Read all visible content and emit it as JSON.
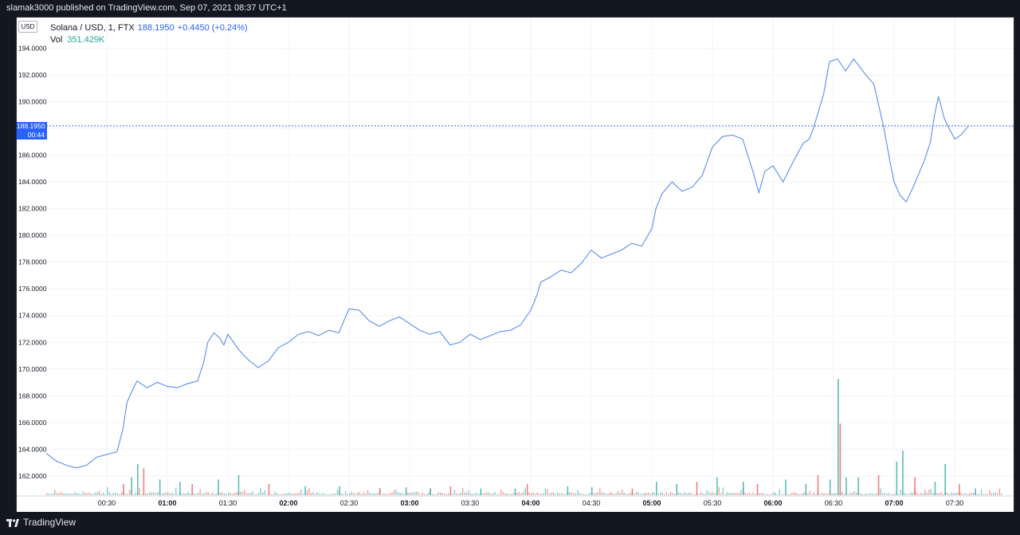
{
  "header": {
    "published_text": "slamak3000 published on TradingView.com, Sep 07, 2021 08:37 UTC+1"
  },
  "footer": {
    "brand": "TradingView"
  },
  "legend": {
    "symbol": "Solana / USD, 1, FTX",
    "price": "188.1950",
    "change": "+0.4450 (+0.24%)",
    "vol_label": "Vol",
    "vol_value": "351.429K"
  },
  "currency_badge": "USD",
  "price_tag": {
    "price": "188.1950",
    "countdown": "00:44"
  },
  "colors": {
    "line": "#5b8def",
    "vol_up": "#26a69a",
    "vol_down": "#ef5350",
    "grid": "#f0f3fa",
    "price_line": "#2962ff"
  },
  "chart_data": {
    "type": "line",
    "title": "Solana / USD, 1, FTX",
    "xlabel": "",
    "ylabel": "",
    "ylim": [
      160.5,
      196.3
    ],
    "y_ticks": [
      "162.0000",
      "164.0000",
      "166.0000",
      "168.0000",
      "170.0000",
      "172.0000",
      "174.0000",
      "176.0000",
      "178.0000",
      "180.0000",
      "182.0000",
      "184.0000",
      "186.0000",
      "188.0000",
      "190.0000",
      "192.0000",
      "194.0000"
    ],
    "x_ticks": [
      "00:30",
      "01:00",
      "01:30",
      "02:00",
      "02:30",
      "03:00",
      "03:30",
      "04:00",
      "04:30",
      "05:00",
      "05:30",
      "06:00",
      "06:30",
      "07:00",
      "07:30"
    ],
    "x_tick_minutes": [
      30,
      60,
      90,
      120,
      150,
      180,
      210,
      240,
      270,
      300,
      330,
      360,
      390,
      420,
      450
    ],
    "x_range_minutes": [
      0,
      473
    ],
    "current_price": 188.195,
    "series": [
      {
        "name": "Price",
        "points": [
          [
            0,
            163.7
          ],
          [
            5,
            163.1
          ],
          [
            10,
            162.8
          ],
          [
            15,
            162.6
          ],
          [
            20,
            162.8
          ],
          [
            25,
            163.4
          ],
          [
            30,
            163.6
          ],
          [
            35,
            163.8
          ],
          [
            38,
            165.5
          ],
          [
            40,
            167.5
          ],
          [
            43,
            168.5
          ],
          [
            45,
            169.1
          ],
          [
            50,
            168.6
          ],
          [
            55,
            169.0
          ],
          [
            60,
            168.7
          ],
          [
            65,
            168.6
          ],
          [
            70,
            168.9
          ],
          [
            75,
            169.1
          ],
          [
            78,
            170.5
          ],
          [
            80,
            172.0
          ],
          [
            83,
            172.7
          ],
          [
            86,
            172.3
          ],
          [
            88,
            171.8
          ],
          [
            90,
            172.6
          ],
          [
            95,
            171.5
          ],
          [
            100,
            170.7
          ],
          [
            105,
            170.1
          ],
          [
            110,
            170.6
          ],
          [
            115,
            171.6
          ],
          [
            120,
            172.0
          ],
          [
            125,
            172.6
          ],
          [
            130,
            172.8
          ],
          [
            135,
            172.5
          ],
          [
            140,
            172.9
          ],
          [
            145,
            172.7
          ],
          [
            148,
            173.8
          ],
          [
            150,
            174.5
          ],
          [
            155,
            174.4
          ],
          [
            160,
            173.6
          ],
          [
            165,
            173.2
          ],
          [
            170,
            173.6
          ],
          [
            175,
            173.9
          ],
          [
            180,
            173.4
          ],
          [
            185,
            172.9
          ],
          [
            190,
            172.6
          ],
          [
            195,
            172.8
          ],
          [
            200,
            171.8
          ],
          [
            205,
            172.0
          ],
          [
            210,
            172.6
          ],
          [
            215,
            172.2
          ],
          [
            220,
            172.5
          ],
          [
            225,
            172.8
          ],
          [
            230,
            172.9
          ],
          [
            235,
            173.3
          ],
          [
            240,
            174.4
          ],
          [
            243,
            175.5
          ],
          [
            245,
            176.5
          ],
          [
            250,
            176.9
          ],
          [
            255,
            177.4
          ],
          [
            260,
            177.2
          ],
          [
            265,
            177.9
          ],
          [
            270,
            178.9
          ],
          [
            275,
            178.3
          ],
          [
            280,
            178.6
          ],
          [
            285,
            178.9
          ],
          [
            290,
            179.4
          ],
          [
            295,
            179.2
          ],
          [
            300,
            180.5
          ],
          [
            302,
            182.0
          ],
          [
            305,
            183.1
          ],
          [
            310,
            184.0
          ],
          [
            315,
            183.3
          ],
          [
            320,
            183.6
          ],
          [
            325,
            184.5
          ],
          [
            330,
            186.6
          ],
          [
            335,
            187.4
          ],
          [
            340,
            187.5
          ],
          [
            345,
            187.2
          ],
          [
            350,
            184.8
          ],
          [
            353,
            183.2
          ],
          [
            356,
            184.8
          ],
          [
            360,
            185.2
          ],
          [
            365,
            184.0
          ],
          [
            370,
            185.5
          ],
          [
            375,
            186.9
          ],
          [
            378,
            187.2
          ],
          [
            380,
            188.0
          ],
          [
            385,
            190.5
          ],
          [
            388,
            193.0
          ],
          [
            392,
            193.2
          ],
          [
            396,
            192.3
          ],
          [
            400,
            193.2
          ],
          [
            405,
            192.2
          ],
          [
            410,
            191.3
          ],
          [
            415,
            188.0
          ],
          [
            418,
            185.5
          ],
          [
            420,
            184.0
          ],
          [
            423,
            183.0
          ],
          [
            426,
            182.5
          ],
          [
            430,
            183.8
          ],
          [
            435,
            185.6
          ],
          [
            438,
            187.0
          ],
          [
            440,
            189.0
          ],
          [
            442,
            190.4
          ],
          [
            445,
            188.7
          ],
          [
            450,
            187.2
          ],
          [
            453,
            187.5
          ],
          [
            457,
            188.2
          ]
        ]
      }
    ],
    "volume": {
      "name": "Vol",
      "current": "351.429K",
      "bars": [
        [
          20,
          0.0
        ],
        [
          38,
          5.0
        ],
        [
          42,
          8.0
        ],
        [
          45,
          14.0
        ],
        [
          48,
          12.0
        ],
        [
          56,
          7.0
        ],
        [
          66,
          6.0
        ],
        [
          72,
          5.0
        ],
        [
          85,
          7.0
        ],
        [
          95,
          9.0
        ],
        [
          110,
          5.0
        ],
        [
          128,
          4.0
        ],
        [
          145,
          4.0
        ],
        [
          165,
          3.0
        ],
        [
          178,
          3.5
        ],
        [
          190,
          3.0
        ],
        [
          200,
          4.0
        ],
        [
          215,
          3.0
        ],
        [
          232,
          3.0
        ],
        [
          238,
          5.0
        ],
        [
          258,
          4.0
        ],
        [
          270,
          3.5
        ],
        [
          290,
          3.0
        ],
        [
          302,
          6.0
        ],
        [
          312,
          5.0
        ],
        [
          322,
          6.0
        ],
        [
          332,
          8.0
        ],
        [
          345,
          6.0
        ],
        [
          352,
          5.0
        ],
        [
          366,
          7.0
        ],
        [
          376,
          5.0
        ],
        [
          382,
          9.0
        ],
        [
          388,
          7.0
        ],
        [
          392,
          52.0
        ],
        [
          393,
          32.0
        ],
        [
          396,
          8.0
        ],
        [
          402,
          8.0
        ],
        [
          412,
          9.0
        ],
        [
          421,
          15.0
        ],
        [
          424,
          20.0
        ],
        [
          430,
          8.0
        ],
        [
          440,
          6.0
        ],
        [
          445,
          14.0
        ],
        [
          452,
          5.0
        ],
        [
          460,
          3.0
        ]
      ]
    }
  }
}
